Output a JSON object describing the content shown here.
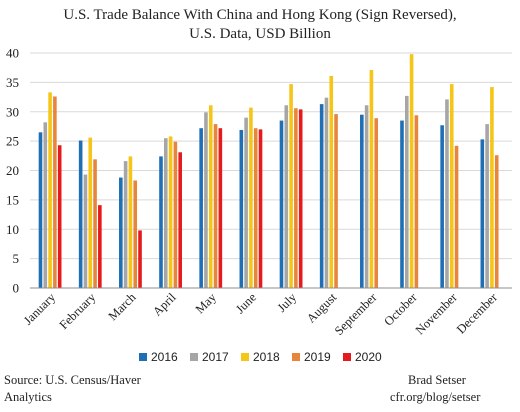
{
  "chart_data": {
    "type": "bar",
    "title_line1": "U.S. Trade Balance With China and Hong Kong (Sign Reversed),",
    "title_line2": "U.S. Data, USD Billion",
    "xlabel": "",
    "ylabel": "",
    "ylim": [
      0,
      40
    ],
    "yticks": [
      "0",
      "5",
      "10",
      "15",
      "20",
      "25",
      "30",
      "35",
      "40"
    ],
    "grid": true,
    "legend_position": "bottom",
    "categories": [
      "January",
      "February",
      "March",
      "April",
      "May",
      "June",
      "July",
      "August",
      "September",
      "October",
      "November",
      "December"
    ],
    "series": [
      {
        "name": "2016",
        "color": "#1f6fb5",
        "values": [
          26.5,
          25.1,
          18.8,
          22.4,
          27.2,
          26.9,
          28.5,
          31.3,
          29.5,
          28.5,
          27.7,
          25.3
        ]
      },
      {
        "name": "2017",
        "color": "#a6a6a6",
        "values": [
          28.2,
          19.3,
          21.6,
          25.5,
          29.9,
          29.0,
          31.1,
          32.4,
          31.1,
          32.7,
          32.1,
          27.9
        ]
      },
      {
        "name": "2018",
        "color": "#f5c518",
        "values": [
          33.3,
          25.6,
          22.4,
          25.8,
          31.1,
          30.7,
          34.7,
          36.1,
          37.1,
          39.8,
          34.7,
          34.2
        ]
      },
      {
        "name": "2019",
        "color": "#e8853d",
        "values": [
          32.6,
          21.9,
          18.3,
          24.9,
          27.9,
          27.2,
          30.6,
          29.6,
          28.9,
          29.4,
          24.2,
          22.6
        ]
      },
      {
        "name": "2020",
        "color": "#e41a1c",
        "values": [
          24.3,
          14.1,
          9.8,
          23.1,
          27.2,
          27.0,
          30.4,
          null,
          null,
          null,
          null,
          null
        ]
      }
    ]
  },
  "footer": {
    "source_line1": "Source: U.S. Census/Haver",
    "source_line2": "Analytics",
    "author_line1": "Brad Setser",
    "author_line2": "cfr.org/blog/setser"
  }
}
